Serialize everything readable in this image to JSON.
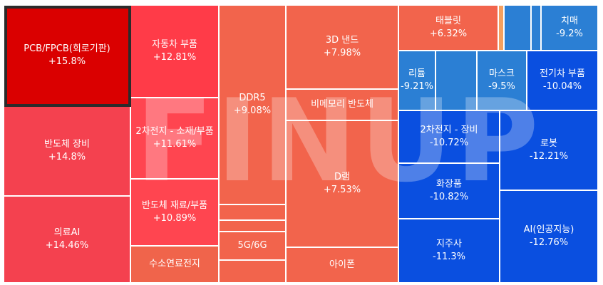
{
  "chart_data": {
    "type": "treemap",
    "watermark": "FINUP",
    "tiles": [
      {
        "name": "PCB/FPCB(회로기판)",
        "change": "+15.8%",
        "value": 15.8,
        "color": "#da0000",
        "selected": true
      },
      {
        "name": "반도체 장비",
        "change": "+14.8%",
        "value": 14.8,
        "color": "#f4414f"
      },
      {
        "name": "의료AI",
        "change": "+14.46%",
        "value": 14.46,
        "color": "#f4414f"
      },
      {
        "name": "자동차 부품",
        "change": "+12.81%",
        "value": 12.81,
        "color": "#ff3b48"
      },
      {
        "name": "2차전지 - 소재/부품",
        "change": "+11.61%",
        "value": 11.61,
        "color": "#ff4550"
      },
      {
        "name": "반도체 재료/부품",
        "change": "+10.89%",
        "value": 10.89,
        "color": "#ff4550"
      },
      {
        "name": "수소연료전지",
        "change": "",
        "value": null,
        "color": "#f0644b"
      },
      {
        "name": "DDR5",
        "change": "+9.08%",
        "value": 9.08,
        "color": "#f2644c"
      },
      {
        "name": "",
        "change": "",
        "value": null,
        "color": "#f2644c"
      },
      {
        "name": "",
        "change": "",
        "value": null,
        "color": "#f2644c"
      },
      {
        "name": "5G/6G",
        "change": "",
        "value": null,
        "color": "#f2644c"
      },
      {
        "name": "",
        "change": "",
        "value": null,
        "color": "#f2644c"
      },
      {
        "name": "3D 낸드",
        "change": "+7.98%",
        "value": 7.98,
        "color": "#f2644c"
      },
      {
        "name": "비메모리 반도체",
        "change": "",
        "value": null,
        "color": "#f2644c"
      },
      {
        "name": "D램",
        "change": "+7.53%",
        "value": 7.53,
        "color": "#f2644c"
      },
      {
        "name": "아이폰",
        "change": "",
        "value": null,
        "color": "#f2644c"
      },
      {
        "name": "태블릿",
        "change": "+6.32%",
        "value": 6.32,
        "color": "#f2644c"
      },
      {
        "name": "",
        "change": "",
        "value": null,
        "color": "#f4a060"
      },
      {
        "name": "",
        "change": "",
        "value": null,
        "color": "#2b7fd4"
      },
      {
        "name": "",
        "change": "",
        "value": null,
        "color": "#2b7fd4"
      },
      {
        "name": "치매",
        "change": "-9.2%",
        "value": -9.2,
        "color": "#2b7fd4"
      },
      {
        "name": "리튬",
        "change": "-9.21%",
        "value": -9.21,
        "color": "#2b7fd4"
      },
      {
        "name": "",
        "change": "",
        "value": null,
        "color": "#2b7fd4"
      },
      {
        "name": "마스크",
        "change": "-9.5%",
        "value": -9.5,
        "color": "#2b7fd4"
      },
      {
        "name": "전기차 부품",
        "change": "-10.04%",
        "value": -10.04,
        "color": "#0a4fe0"
      },
      {
        "name": "2차전지 - 장비",
        "change": "-10.72%",
        "value": -10.72,
        "color": "#0a4fe0"
      },
      {
        "name": "화장품",
        "change": "-10.82%",
        "value": -10.82,
        "color": "#0a4fe0"
      },
      {
        "name": "지주사",
        "change": "-11.3%",
        "value": -11.3,
        "color": "#0a4fe0"
      },
      {
        "name": "로봇",
        "change": "-12.21%",
        "value": -12.21,
        "color": "#0a4fe0"
      },
      {
        "name": "AI(인공지능)",
        "change": "-12.76%",
        "value": -12.76,
        "color": "#0a4fe0"
      }
    ]
  }
}
